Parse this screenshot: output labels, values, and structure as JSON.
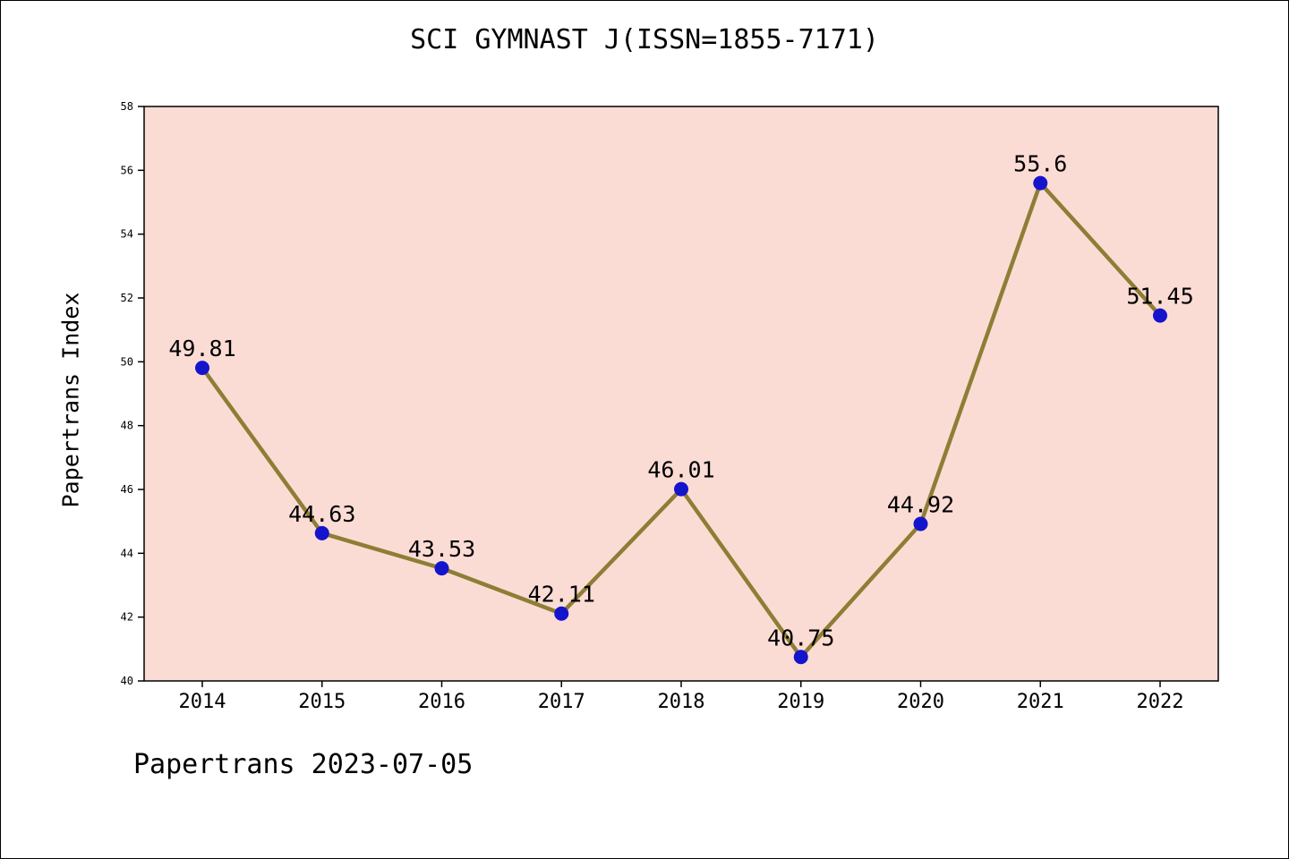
{
  "chart_data": {
    "type": "line",
    "title": "SCI GYMNAST J(ISSN=1855-7171)",
    "ylabel": "Papertrans Index",
    "xlabel": "",
    "footer": "Papertrans 2023-07-05",
    "x": [
      2014,
      2015,
      2016,
      2017,
      2018,
      2019,
      2020,
      2021,
      2022
    ],
    "values": [
      49.81,
      44.63,
      43.53,
      42.11,
      46.01,
      40.75,
      44.92,
      55.6,
      51.45
    ],
    "point_labels": [
      "49.81",
      "44.63",
      "43.53",
      "42.11",
      "46.01",
      "40.75",
      "44.92",
      "55.6",
      "51.45"
    ],
    "ylim": [
      40,
      58
    ],
    "yticks": [
      40,
      42,
      44,
      46,
      48,
      50,
      52,
      54,
      56,
      58
    ],
    "grid": false,
    "legend_position": "none",
    "colors": {
      "line": "#8e7e35",
      "marker": "#1414cd",
      "plot_bg": "#fbdcd5",
      "axis": "#000000",
      "text": "#000000"
    }
  }
}
